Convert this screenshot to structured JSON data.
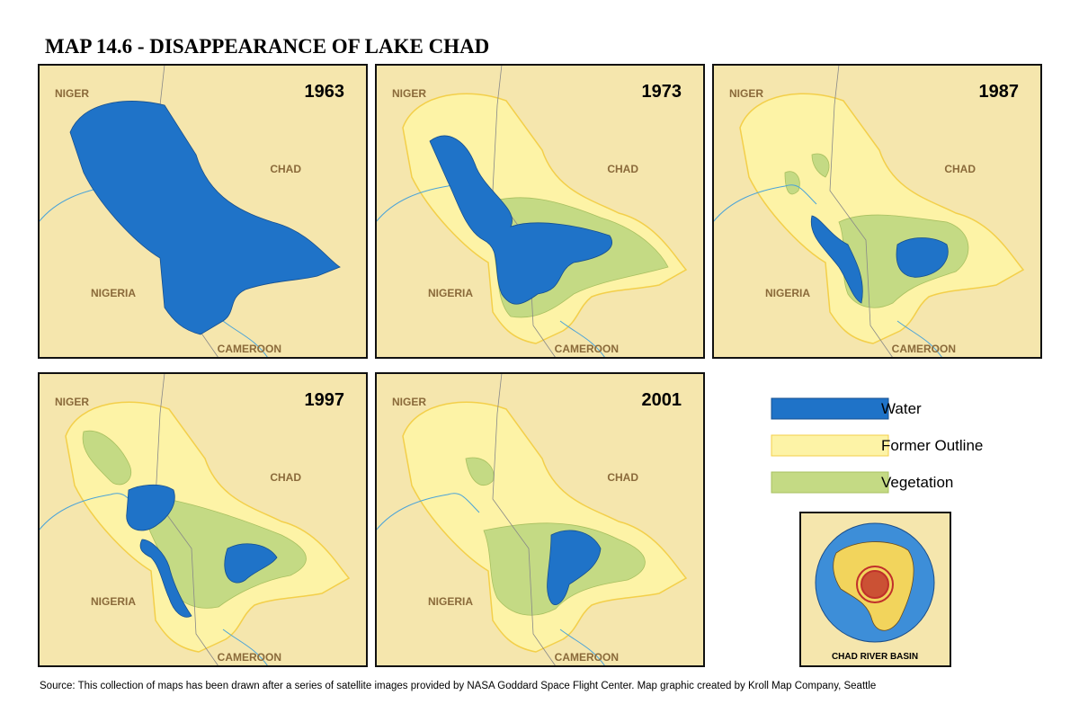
{
  "title": "MAP 14.6 - DISAPPEARANCE OF LAKE CHAD",
  "panels": [
    {
      "year": "1963",
      "labels": [
        "NIGER",
        "CHAD",
        "NIGERIA",
        "CAMEROON"
      ]
    },
    {
      "year": "1973",
      "labels": [
        "NIGER",
        "CHAD",
        "NIGERIA",
        "CAMEROON"
      ]
    },
    {
      "year": "1987",
      "labels": [
        "NIGER",
        "CHAD",
        "NIGERIA",
        "CAMEROON"
      ]
    },
    {
      "year": "1997",
      "labels": [
        "NIGER",
        "CHAD",
        "NIGERIA",
        "CAMEROON"
      ]
    },
    {
      "year": "2001",
      "labels": [
        "NIGER",
        "CHAD",
        "NIGERIA",
        "CAMEROON"
      ]
    }
  ],
  "legend": [
    {
      "label": "Water",
      "color": "#1f73c8"
    },
    {
      "label": "Former Outline",
      "color": "#fdf3a6"
    },
    {
      "label": "Vegetation",
      "color": "#c4da84"
    }
  ],
  "inset": {
    "label": "CHAD RIVER BASIN"
  },
  "source": "Source: This collection of maps has been drawn after a series of satellite images provided by NASA Goddard Space Flight Center. Map graphic created by Kroll Map Company, Seattle"
}
